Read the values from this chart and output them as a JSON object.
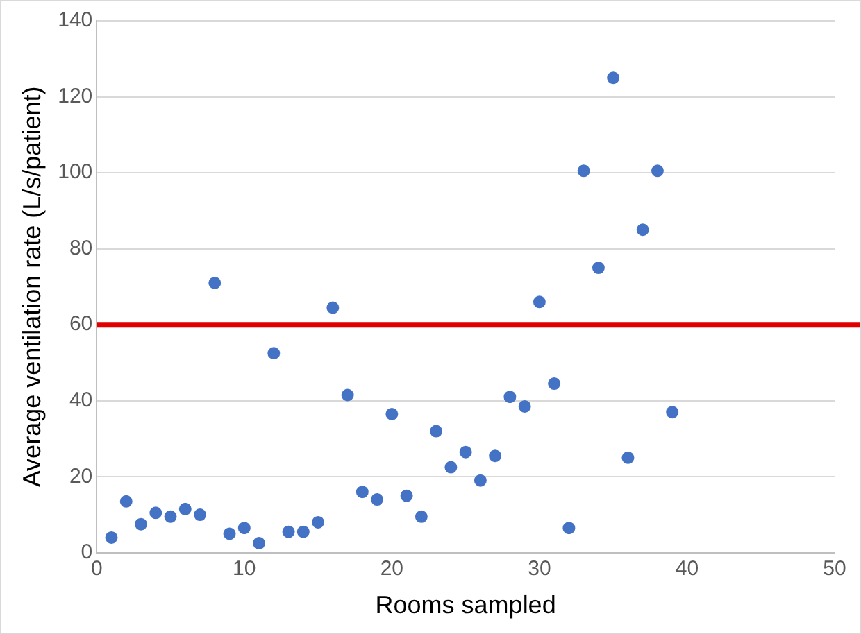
{
  "chart_data": {
    "type": "scatter",
    "xlabel": "Rooms sampled",
    "ylabel": "Average ventilation rate (L/s/patient)",
    "x": [
      1,
      2,
      3,
      4,
      5,
      6,
      7,
      8,
      9,
      10,
      11,
      12,
      13,
      14,
      15,
      16,
      17,
      18,
      19,
      20,
      21,
      22,
      23,
      24,
      25,
      26,
      27,
      28,
      29,
      30,
      31,
      32,
      33,
      34,
      35,
      36,
      37,
      38,
      39
    ],
    "series": [
      {
        "color": "#4472c4",
        "values": [
          4,
          13.5,
          7.5,
          10.5,
          9.5,
          11.5,
          10,
          71,
          5,
          6.5,
          2.5,
          52.5,
          5.5,
          5.5,
          8,
          64.5,
          41.5,
          16,
          14,
          36.5,
          15,
          9.5,
          32,
          22.5,
          26.5,
          19,
          25.5,
          41,
          38.5,
          66,
          44.5,
          6.5,
          100.5,
          75,
          125,
          25,
          85,
          100.5,
          37
        ]
      }
    ],
    "xlim": [
      0,
      50
    ],
    "xticks": [
      0,
      10,
      20,
      30,
      40,
      50
    ],
    "ylim": [
      0,
      140
    ],
    "yticks": [
      0,
      20,
      40,
      60,
      80,
      100,
      120,
      140
    ],
    "ref_lines": [
      {
        "axis": "y",
        "value": 60,
        "color": "#e00000"
      }
    ],
    "grid": "y",
    "legend": false,
    "marker": "circle"
  }
}
